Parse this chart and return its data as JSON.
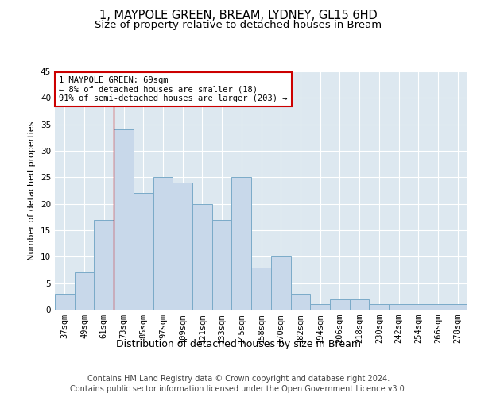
{
  "title1": "1, MAYPOLE GREEN, BREAM, LYDNEY, GL15 6HD",
  "title2": "Size of property relative to detached houses in Bream",
  "xlabel": "Distribution of detached houses by size in Bream",
  "ylabel": "Number of detached properties",
  "categories": [
    "37sqm",
    "49sqm",
    "61sqm",
    "73sqm",
    "85sqm",
    "97sqm",
    "109sqm",
    "121sqm",
    "133sqm",
    "145sqm",
    "158sqm",
    "170sqm",
    "182sqm",
    "194sqm",
    "206sqm",
    "218sqm",
    "230sqm",
    "242sqm",
    "254sqm",
    "266sqm",
    "278sqm"
  ],
  "values": [
    3,
    7,
    17,
    34,
    22,
    25,
    24,
    20,
    17,
    25,
    8,
    10,
    3,
    1,
    2,
    2,
    1,
    1,
    1,
    1,
    1
  ],
  "bar_color": "#c8d8ea",
  "bar_edge_color": "#7aaac8",
  "background_color": "#dde8f0",
  "grid_color": "#ffffff",
  "annotation_box_text": "1 MAYPOLE GREEN: 69sqm\n← 8% of detached houses are smaller (18)\n91% of semi-detached houses are larger (203) →",
  "annotation_box_color": "#ffffff",
  "annotation_box_edge_color": "#cc0000",
  "red_line_x": 2.5,
  "ylim": [
    0,
    45
  ],
  "yticks": [
    0,
    5,
    10,
    15,
    20,
    25,
    30,
    35,
    40,
    45
  ],
  "footer1": "Contains HM Land Registry data © Crown copyright and database right 2024.",
  "footer2": "Contains public sector information licensed under the Open Government Licence v3.0.",
  "title1_fontsize": 10.5,
  "title2_fontsize": 9.5,
  "tick_fontsize": 7.5,
  "xlabel_fontsize": 9,
  "ylabel_fontsize": 8,
  "footer_fontsize": 7,
  "ann_fontsize": 7.5
}
